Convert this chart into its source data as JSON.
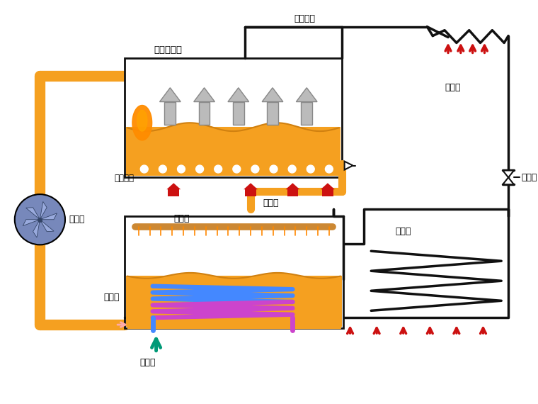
{
  "orange": "#F5A020",
  "dark_orange": "#D08010",
  "pipe_black": "#111111",
  "red": "#CC1111",
  "blue_coil": "#4488FF",
  "purple_coil": "#CC44CC",
  "teal": "#009977",
  "pump_main": "#7788BB",
  "pump_blade": "#99AADD",
  "pump_dark": "#334466",
  "gray_arrow": "#BBBBBB",
  "gray_arrow_edge": "#888888",
  "labels": {
    "zhileng": "制冷工质",
    "zhengqi": "蒸汽发生器",
    "lengning": "冷凝器",
    "jieliu": "节流阀",
    "zhengfa": "蒸发器",
    "xishou": "吸收器",
    "xunhuan": "循环泵",
    "jiare": "加热过程",
    "nong": "浓溶液",
    "xi": "稀溶液",
    "lengque": "冷却水"
  }
}
